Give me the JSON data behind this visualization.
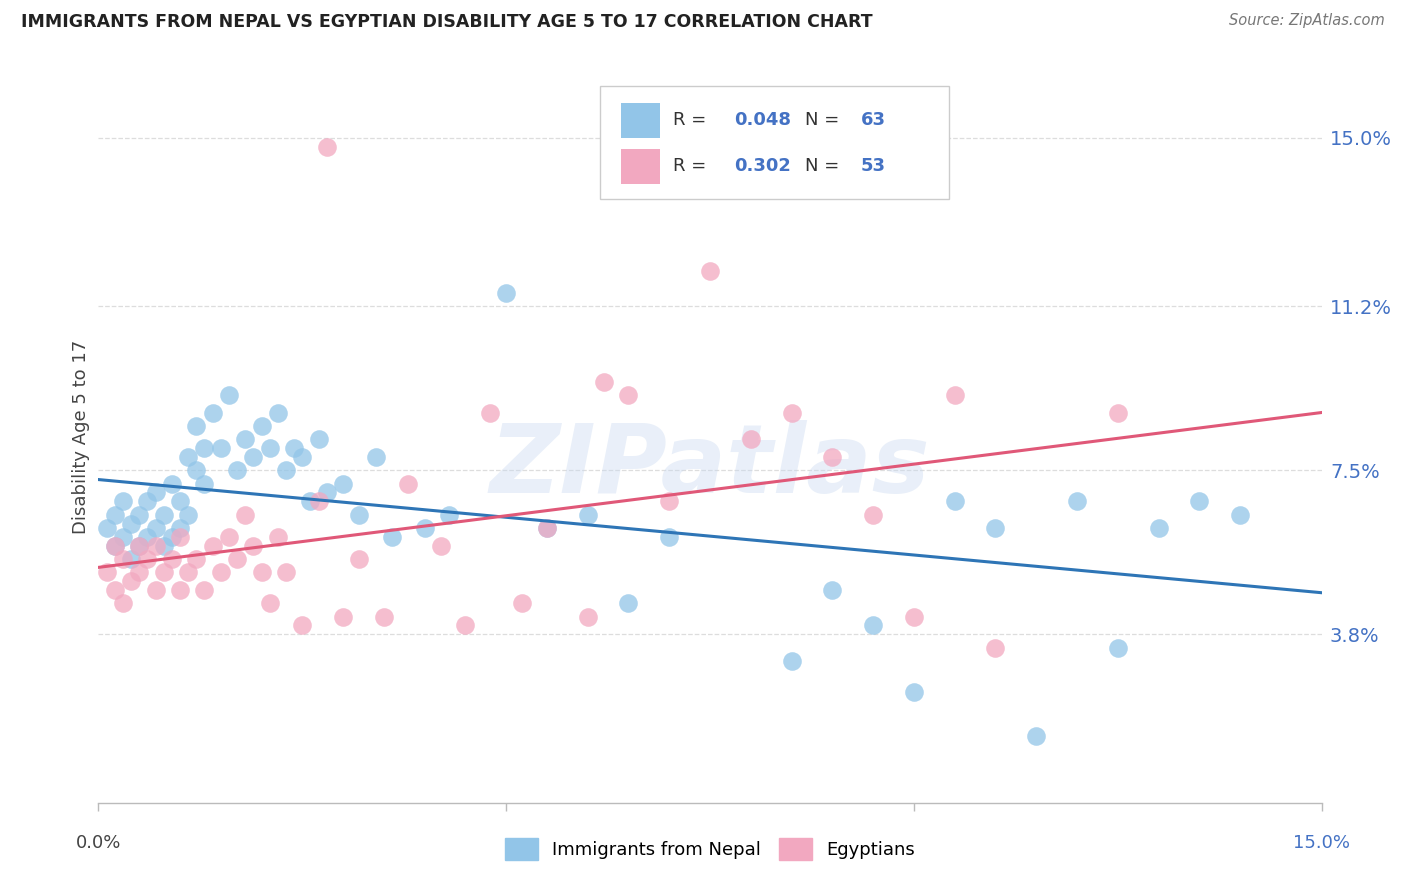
{
  "title": "IMMIGRANTS FROM NEPAL VS EGYPTIAN DISABILITY AGE 5 TO 17 CORRELATION CHART",
  "source": "Source: ZipAtlas.com",
  "ylabel": "Disability Age 5 to 17",
  "nepal_R": "0.048",
  "nepal_N": "63",
  "egypt_R": "0.302",
  "egypt_N": "53",
  "nepal_color": "#92C5E8",
  "egypt_color": "#F2A8C0",
  "nepal_line_color": "#2E75B6",
  "egypt_line_color": "#E05878",
  "xlim": [
    0.0,
    0.15
  ],
  "ylim": [
    0.0,
    0.165
  ],
  "ytick_vals": [
    0.038,
    0.075,
    0.112,
    0.15
  ],
  "ytick_labels": [
    "3.8%",
    "7.5%",
    "11.2%",
    "15.0%"
  ],
  "nepal_legend_label": "Immigrants from Nepal",
  "egypt_legend_label": "Egyptians",
  "background": "#ffffff",
  "grid_color": "#dddddd",
  "axis_label_color": "#4472C4",
  "title_color": "#222222",
  "nepal_x": [
    0.001,
    0.002,
    0.002,
    0.003,
    0.003,
    0.004,
    0.004,
    0.005,
    0.005,
    0.006,
    0.006,
    0.007,
    0.007,
    0.008,
    0.008,
    0.009,
    0.009,
    0.01,
    0.01,
    0.011,
    0.011,
    0.012,
    0.012,
    0.013,
    0.013,
    0.014,
    0.015,
    0.016,
    0.017,
    0.018,
    0.019,
    0.02,
    0.021,
    0.022,
    0.023,
    0.024,
    0.025,
    0.026,
    0.027,
    0.028,
    0.03,
    0.032,
    0.034,
    0.036,
    0.04,
    0.043,
    0.05,
    0.055,
    0.06,
    0.065,
    0.07,
    0.085,
    0.09,
    0.095,
    0.1,
    0.105,
    0.11,
    0.115,
    0.12,
    0.125,
    0.13,
    0.135,
    0.14
  ],
  "nepal_y": [
    0.062,
    0.058,
    0.065,
    0.06,
    0.068,
    0.055,
    0.063,
    0.058,
    0.065,
    0.06,
    0.068,
    0.062,
    0.07,
    0.058,
    0.065,
    0.06,
    0.072,
    0.062,
    0.068,
    0.065,
    0.078,
    0.075,
    0.085,
    0.08,
    0.072,
    0.088,
    0.08,
    0.092,
    0.075,
    0.082,
    0.078,
    0.085,
    0.08,
    0.088,
    0.075,
    0.08,
    0.078,
    0.068,
    0.082,
    0.07,
    0.072,
    0.065,
    0.078,
    0.06,
    0.062,
    0.065,
    0.115,
    0.062,
    0.065,
    0.045,
    0.06,
    0.032,
    0.048,
    0.04,
    0.025,
    0.068,
    0.062,
    0.015,
    0.068,
    0.035,
    0.062,
    0.068,
    0.065
  ],
  "egypt_x": [
    0.001,
    0.002,
    0.002,
    0.003,
    0.003,
    0.004,
    0.005,
    0.005,
    0.006,
    0.007,
    0.007,
    0.008,
    0.009,
    0.01,
    0.01,
    0.011,
    0.012,
    0.013,
    0.014,
    0.015,
    0.016,
    0.017,
    0.018,
    0.019,
    0.02,
    0.021,
    0.022,
    0.023,
    0.025,
    0.027,
    0.028,
    0.03,
    0.032,
    0.035,
    0.038,
    0.042,
    0.045,
    0.048,
    0.052,
    0.055,
    0.06,
    0.062,
    0.065,
    0.07,
    0.075,
    0.08,
    0.085,
    0.09,
    0.095,
    0.1,
    0.105,
    0.11,
    0.125
  ],
  "egypt_y": [
    0.052,
    0.048,
    0.058,
    0.045,
    0.055,
    0.05,
    0.058,
    0.052,
    0.055,
    0.048,
    0.058,
    0.052,
    0.055,
    0.048,
    0.06,
    0.052,
    0.055,
    0.048,
    0.058,
    0.052,
    0.06,
    0.055,
    0.065,
    0.058,
    0.052,
    0.045,
    0.06,
    0.052,
    0.04,
    0.068,
    0.148,
    0.042,
    0.055,
    0.042,
    0.072,
    0.058,
    0.04,
    0.088,
    0.045,
    0.062,
    0.042,
    0.095,
    0.092,
    0.068,
    0.12,
    0.082,
    0.088,
    0.078,
    0.065,
    0.042,
    0.092,
    0.035,
    0.088
  ]
}
